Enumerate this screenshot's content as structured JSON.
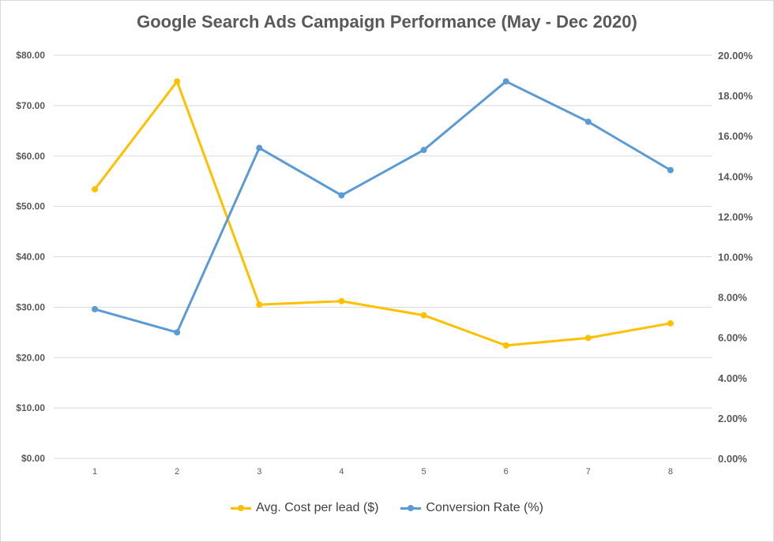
{
  "chart_data": {
    "type": "line",
    "title": "Google Search Ads Campaign Performance (May - Dec 2020)",
    "x": [
      "1",
      "2",
      "3",
      "4",
      "5",
      "6",
      "7",
      "8"
    ],
    "series": [
      {
        "name": "Avg. Cost per lead ($)",
        "axis": "left",
        "color": "#FFC000",
        "values": [
          53.4,
          74.8,
          30.5,
          31.2,
          28.4,
          22.4,
          23.9,
          26.8
        ]
      },
      {
        "name": "Conversion Rate (%)",
        "axis": "right",
        "color": "#5B9BD5",
        "values": [
          7.4,
          6.25,
          15.4,
          13.05,
          15.3,
          18.7,
          16.7,
          14.3
        ]
      }
    ],
    "yleft": {
      "lim": [
        0,
        80
      ],
      "ticks": [
        "$0.00",
        "$10.00",
        "$20.00",
        "$30.00",
        "$40.00",
        "$50.00",
        "$60.00",
        "$70.00",
        "$80.00"
      ]
    },
    "yright": {
      "lim": [
        0,
        20
      ],
      "ticks": [
        "0.00%",
        "2.00%",
        "4.00%",
        "6.00%",
        "8.00%",
        "10.00%",
        "12.00%",
        "14.00%",
        "16.00%",
        "18.00%",
        "20.00%"
      ]
    },
    "grid": true,
    "legend_position": "bottom"
  }
}
